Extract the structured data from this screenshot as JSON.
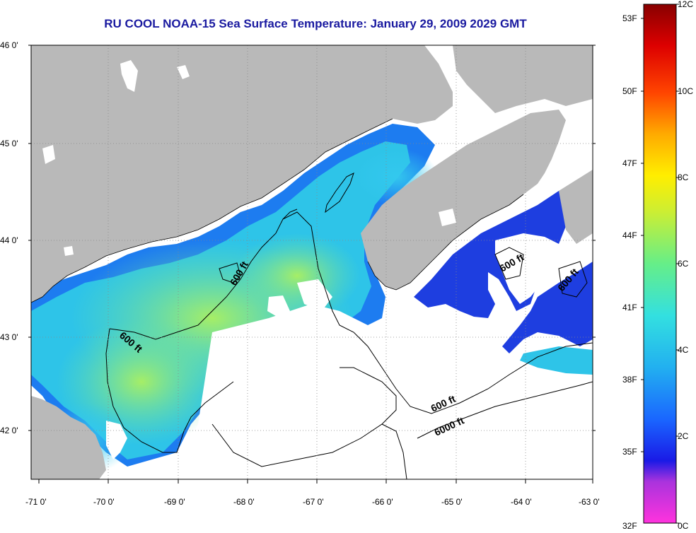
{
  "title": "RU COOL  NOAA-15  Sea Surface Temperature:  January 29, 2009 2029 GMT",
  "map": {
    "lat_ticks": [
      "46 0'",
      "45 0'",
      "44 0'",
      "43 0'",
      "42 0'"
    ],
    "lon_ticks": [
      "-71 0'",
      "-70 0'",
      "-69 0'",
      "-68 0'",
      "-67 0'",
      "-66 0'",
      "-65 0'",
      "-64 0'",
      "-63 0'"
    ],
    "contour_labels": [
      "600 ft",
      "600 ft",
      "600 ft",
      "600 ft",
      "6000 ft"
    ],
    "colors": {
      "land": "#b9b9b9",
      "no_data": "#ffffff",
      "contour": "#000000"
    }
  },
  "colorbar": {
    "fahrenheit": [
      "53F",
      "50F",
      "47F",
      "44F",
      "41F",
      "38F",
      "35F",
      "32F"
    ],
    "celsius": [
      "12C",
      "10C",
      "8C",
      "6C",
      "4C",
      "2C",
      "0C"
    ],
    "scale": [
      "#ff33dd",
      "#8833dd",
      "#1a1ae6",
      "#1a66ff",
      "#22b0f0",
      "#33e0e0",
      "#66ee88",
      "#ccee33",
      "#ffee00",
      "#ffaa00",
      "#ff4400",
      "#dd0000",
      "#880000"
    ]
  }
}
